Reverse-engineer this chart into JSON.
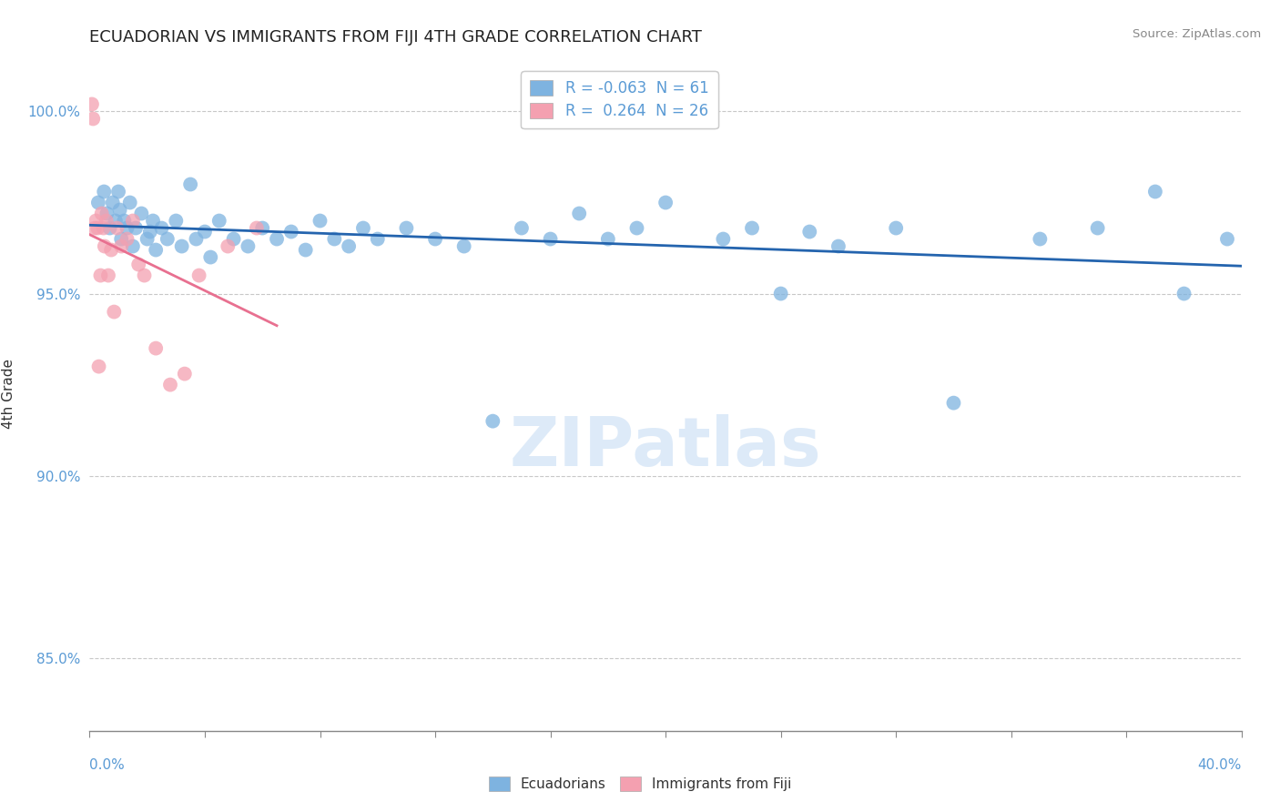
{
  "title": "ECUADORIAN VS IMMIGRANTS FROM FIJI 4TH GRADE CORRELATION CHART",
  "source": "Source: ZipAtlas.com",
  "ylabel": "4th Grade",
  "xlim": [
    0.0,
    40.0
  ],
  "ylim": [
    83.0,
    101.5
  ],
  "yticks": [
    85.0,
    90.0,
    95.0,
    100.0
  ],
  "ytick_labels": [
    "85.0%",
    "90.0%",
    "95.0%",
    "100.0%"
  ],
  "legend_blue_r": "-0.063",
  "legend_blue_n": "61",
  "legend_pink_r": "0.264",
  "legend_pink_n": "26",
  "blue_color": "#7EB3E0",
  "pink_color": "#F4A0B0",
  "blue_line_color": "#2464AE",
  "pink_line_color": "#E87090",
  "watermark": "ZIPatlas",
  "blue_x": [
    0.3,
    0.5,
    0.6,
    0.7,
    0.8,
    0.9,
    1.0,
    1.05,
    1.1,
    1.2,
    1.3,
    1.4,
    1.5,
    1.6,
    1.8,
    2.0,
    2.1,
    2.2,
    2.3,
    2.5,
    2.7,
    3.0,
    3.2,
    3.5,
    3.7,
    4.0,
    4.2,
    4.5,
    5.0,
    5.5,
    6.0,
    6.5,
    7.0,
    7.5,
    8.0,
    8.5,
    9.0,
    9.5,
    10.0,
    11.0,
    12.0,
    13.0,
    14.0,
    15.0,
    16.0,
    17.0,
    18.0,
    19.0,
    20.0,
    22.0,
    23.0,
    24.0,
    25.0,
    26.0,
    28.0,
    30.0,
    33.0,
    35.0,
    37.0,
    38.0,
    39.5
  ],
  "blue_y": [
    97.5,
    97.8,
    97.2,
    96.8,
    97.5,
    97.0,
    97.8,
    97.3,
    96.5,
    97.0,
    96.8,
    97.5,
    96.3,
    96.8,
    97.2,
    96.5,
    96.7,
    97.0,
    96.2,
    96.8,
    96.5,
    97.0,
    96.3,
    98.0,
    96.5,
    96.7,
    96.0,
    97.0,
    96.5,
    96.3,
    96.8,
    96.5,
    96.7,
    96.2,
    97.0,
    96.5,
    96.3,
    96.8,
    96.5,
    96.8,
    96.5,
    96.3,
    91.5,
    96.8,
    96.5,
    97.2,
    96.5,
    96.8,
    97.5,
    96.5,
    96.8,
    95.0,
    96.7,
    96.3,
    96.8,
    92.0,
    96.5,
    96.8,
    97.8,
    95.0,
    96.5
  ],
  "pink_x": [
    0.08,
    0.12,
    0.18,
    0.22,
    0.28,
    0.32,
    0.38,
    0.42,
    0.48,
    0.52,
    0.58,
    0.65,
    0.75,
    0.85,
    0.95,
    1.1,
    1.3,
    1.5,
    1.7,
    1.9,
    2.3,
    2.8,
    3.3,
    3.8,
    4.8,
    5.8
  ],
  "pink_y": [
    100.2,
    99.8,
    96.8,
    97.0,
    96.8,
    93.0,
    95.5,
    97.2,
    96.8,
    96.3,
    97.0,
    95.5,
    96.2,
    94.5,
    96.8,
    96.3,
    96.5,
    97.0,
    95.8,
    95.5,
    93.5,
    92.5,
    92.8,
    95.5,
    96.3,
    96.8
  ]
}
